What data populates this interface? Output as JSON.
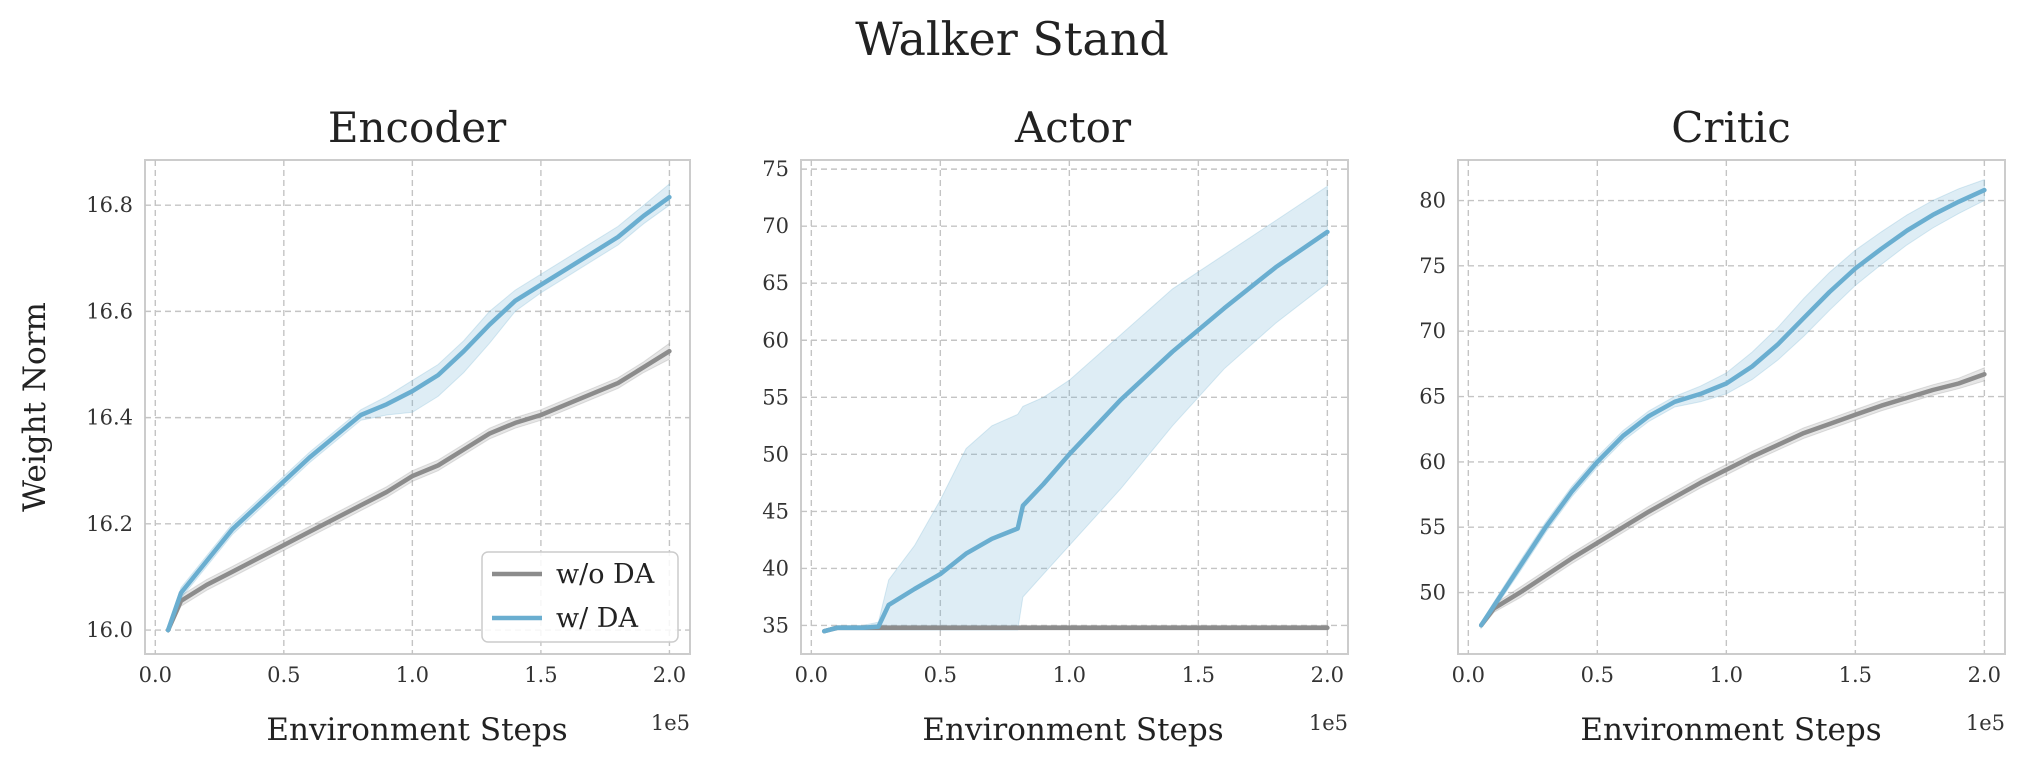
{
  "figure": {
    "title": "Walker Stand",
    "colors": {
      "without_da": "#8c8c8c",
      "with_da": "#6aaed0"
    }
  },
  "chart_data": [
    {
      "type": "line",
      "title": "Encoder",
      "xlabel": "Environment Steps",
      "ylabel": "Weight Norm",
      "x_offset_label": "1e5",
      "xlim": [
        -0.04,
        2.08
      ],
      "ylim": [
        15.955,
        16.885
      ],
      "xticks": [
        0.0,
        0.5,
        1.0,
        1.5,
        2.0
      ],
      "xtick_labels": [
        "0.0",
        "0.5",
        "1.0",
        "1.5",
        "2.0"
      ],
      "yticks": [
        16.0,
        16.2,
        16.4,
        16.6,
        16.8
      ],
      "ytick_labels": [
        "16.0",
        "16.2",
        "16.4",
        "16.6",
        "16.8"
      ],
      "grid": true,
      "legend": {
        "placement": "lower-right",
        "entries": [
          "w/o DA",
          "w/ DA"
        ]
      },
      "x": [
        0.05,
        0.1,
        0.2,
        0.3,
        0.4,
        0.5,
        0.6,
        0.7,
        0.8,
        0.9,
        1.0,
        1.1,
        1.2,
        1.3,
        1.4,
        1.5,
        1.6,
        1.7,
        1.8,
        1.9,
        2.0
      ],
      "series": [
        {
          "name": "w/o DA",
          "color": "#8c8c8c",
          "values": [
            16.0,
            16.055,
            16.085,
            16.11,
            16.135,
            16.16,
            16.185,
            16.21,
            16.235,
            16.26,
            16.29,
            16.31,
            16.34,
            16.37,
            16.39,
            16.405,
            16.425,
            16.445,
            16.465,
            16.495,
            16.525
          ],
          "lower": [
            15.995,
            16.045,
            16.075,
            16.1,
            16.125,
            16.15,
            16.175,
            16.2,
            16.225,
            16.25,
            16.28,
            16.3,
            16.33,
            16.36,
            16.38,
            16.395,
            16.415,
            16.435,
            16.455,
            16.485,
            16.51
          ],
          "upper": [
            16.005,
            16.065,
            16.095,
            16.12,
            16.145,
            16.17,
            16.195,
            16.22,
            16.245,
            16.27,
            16.3,
            16.32,
            16.35,
            16.38,
            16.4,
            16.415,
            16.435,
            16.455,
            16.475,
            16.505,
            16.54
          ]
        },
        {
          "name": "w/ DA",
          "color": "#6aaed0",
          "values": [
            16.0,
            16.07,
            16.13,
            16.19,
            16.235,
            16.28,
            16.325,
            16.365,
            16.405,
            16.425,
            16.45,
            16.48,
            16.525,
            16.575,
            16.62,
            16.65,
            16.68,
            16.71,
            16.74,
            16.78,
            16.815
          ],
          "lower": [
            15.995,
            16.06,
            16.12,
            16.18,
            16.225,
            16.27,
            16.315,
            16.355,
            16.395,
            16.405,
            16.41,
            16.44,
            16.485,
            16.54,
            16.6,
            16.635,
            16.665,
            16.695,
            16.725,
            16.765,
            16.8
          ],
          "upper": [
            16.005,
            16.08,
            16.14,
            16.2,
            16.245,
            16.29,
            16.335,
            16.375,
            16.415,
            16.44,
            16.47,
            16.5,
            16.545,
            16.6,
            16.64,
            16.67,
            16.7,
            16.73,
            16.76,
            16.8,
            16.84
          ]
        }
      ]
    },
    {
      "type": "line",
      "title": "Actor",
      "xlabel": "Environment Steps",
      "ylabel": "",
      "x_offset_label": "1e5",
      "xlim": [
        -0.04,
        2.08
      ],
      "ylim": [
        32.5,
        75.8
      ],
      "xticks": [
        0.0,
        0.5,
        1.0,
        1.5,
        2.0
      ],
      "xtick_labels": [
        "0.0",
        "0.5",
        "1.0",
        "1.5",
        "2.0"
      ],
      "yticks": [
        35,
        40,
        45,
        50,
        55,
        60,
        65,
        70,
        75
      ],
      "ytick_labels": [
        "35",
        "40",
        "45",
        "50",
        "55",
        "60",
        "65",
        "70",
        "75"
      ],
      "grid": true,
      "legend": null,
      "x": [
        0.05,
        0.1,
        0.15,
        0.2,
        0.26,
        0.3,
        0.4,
        0.5,
        0.6,
        0.7,
        0.8,
        0.82,
        0.9,
        1.0,
        1.2,
        1.4,
        1.6,
        1.8,
        2.0
      ],
      "series": [
        {
          "name": "w/o DA",
          "color": "#8c8c8c",
          "values": [
            34.5,
            34.8,
            34.8,
            34.8,
            34.8,
            34.8,
            34.8,
            34.8,
            34.8,
            34.8,
            34.8,
            34.8,
            34.8,
            34.8,
            34.8,
            34.8,
            34.8,
            34.8,
            34.8
          ],
          "lower": [
            34.4,
            34.6,
            34.6,
            34.6,
            34.6,
            34.6,
            34.6,
            34.6,
            34.6,
            34.6,
            34.6,
            34.6,
            34.6,
            34.6,
            34.6,
            34.6,
            34.6,
            34.6,
            34.6
          ],
          "upper": [
            34.6,
            35.0,
            35.0,
            35.0,
            35.0,
            35.0,
            35.0,
            35.0,
            35.0,
            35.0,
            35.0,
            35.0,
            35.0,
            35.0,
            35.0,
            35.0,
            35.0,
            35.0,
            35.0
          ]
        },
        {
          "name": "w/ DA",
          "color": "#6aaed0",
          "values": [
            34.5,
            34.8,
            34.8,
            34.8,
            34.9,
            36.8,
            38.2,
            39.5,
            41.3,
            42.6,
            43.5,
            45.5,
            47.4,
            50.0,
            54.8,
            59.0,
            62.8,
            66.4,
            69.5
          ],
          "lower": [
            34.4,
            34.6,
            34.6,
            34.6,
            34.6,
            34.6,
            34.6,
            34.6,
            34.6,
            34.6,
            34.6,
            37.5,
            39.5,
            42.0,
            47.0,
            52.5,
            57.5,
            61.5,
            65.0
          ],
          "upper": [
            34.6,
            35.0,
            35.0,
            35.0,
            35.3,
            39.0,
            42.0,
            46.0,
            50.5,
            52.5,
            53.5,
            54.2,
            55.0,
            56.5,
            60.5,
            64.5,
            67.5,
            70.5,
            73.5
          ]
        }
      ]
    },
    {
      "type": "line",
      "title": "Critic",
      "xlabel": "Environment Steps",
      "ylabel": "",
      "x_offset_label": "1e5",
      "xlim": [
        -0.04,
        2.08
      ],
      "ylim": [
        45.3,
        83.1
      ],
      "xticks": [
        0.0,
        0.5,
        1.0,
        1.5,
        2.0
      ],
      "xtick_labels": [
        "0.0",
        "0.5",
        "1.0",
        "1.5",
        "2.0"
      ],
      "yticks": [
        50,
        55,
        60,
        65,
        70,
        75,
        80
      ],
      "ytick_labels": [
        "50",
        "55",
        "60",
        "65",
        "70",
        "75",
        "80"
      ],
      "grid": true,
      "legend": null,
      "x": [
        0.05,
        0.1,
        0.2,
        0.3,
        0.4,
        0.5,
        0.6,
        0.7,
        0.8,
        0.9,
        1.0,
        1.1,
        1.2,
        1.3,
        1.4,
        1.5,
        1.6,
        1.7,
        1.8,
        1.9,
        2.0
      ],
      "series": [
        {
          "name": "w/o DA",
          "color": "#8c8c8c",
          "values": [
            47.5,
            48.8,
            50.0,
            51.3,
            52.6,
            53.8,
            55.0,
            56.2,
            57.3,
            58.4,
            59.4,
            60.4,
            61.3,
            62.2,
            62.9,
            63.6,
            64.3,
            64.9,
            65.5,
            66.0,
            66.7
          ],
          "lower": [
            47.3,
            48.5,
            49.6,
            50.9,
            52.2,
            53.4,
            54.6,
            55.8,
            56.9,
            58.0,
            59.0,
            60.0,
            60.9,
            61.8,
            62.5,
            63.2,
            63.9,
            64.5,
            65.1,
            65.6,
            66.2
          ],
          "upper": [
            47.7,
            49.1,
            50.4,
            51.7,
            53.0,
            54.2,
            55.4,
            56.6,
            57.7,
            58.8,
            59.8,
            60.8,
            61.7,
            62.6,
            63.3,
            64.0,
            64.7,
            65.3,
            65.9,
            66.4,
            67.2
          ]
        },
        {
          "name": "w/ DA",
          "color": "#6aaed0",
          "values": [
            47.5,
            49.0,
            52.0,
            55.0,
            57.7,
            60.0,
            62.0,
            63.5,
            64.6,
            65.2,
            66.0,
            67.3,
            69.0,
            71.0,
            73.0,
            74.8,
            76.3,
            77.7,
            78.9,
            79.9,
            80.8
          ],
          "lower": [
            47.3,
            48.7,
            51.6,
            54.6,
            57.3,
            59.6,
            61.6,
            63.1,
            64.2,
            64.6,
            65.2,
            66.3,
            67.8,
            69.6,
            71.6,
            73.5,
            75.1,
            76.6,
            77.9,
            79.0,
            80.0
          ],
          "upper": [
            47.7,
            49.3,
            52.4,
            55.4,
            58.1,
            60.4,
            62.4,
            63.9,
            65.0,
            65.8,
            66.8,
            68.4,
            70.3,
            72.5,
            74.5,
            76.2,
            77.6,
            78.9,
            80.0,
            80.9,
            81.6
          ]
        }
      ]
    }
  ]
}
